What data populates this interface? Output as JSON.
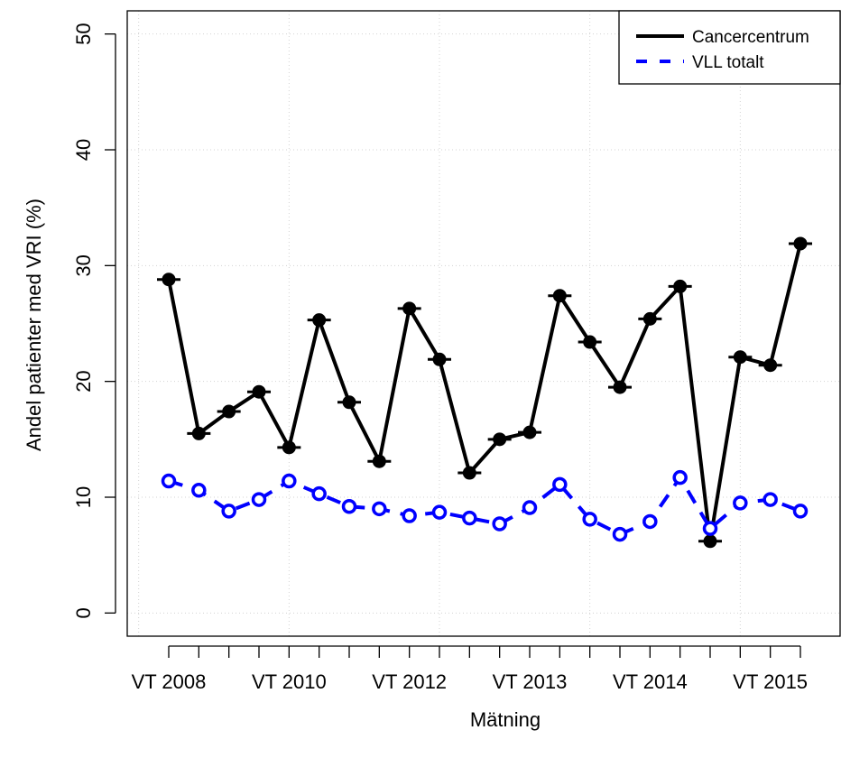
{
  "chart_data": {
    "type": "line",
    "xlabel": "Mätning",
    "ylabel": "Andel patienter med VRI (%)",
    "categories": [
      "VT 2008",
      null,
      null,
      null,
      "VT 2010",
      null,
      null,
      null,
      "VT 2012",
      null,
      null,
      null,
      "VT 2013",
      null,
      null,
      null,
      "VT 2014",
      null,
      null,
      null,
      "VT 2015",
      null
    ],
    "series": [
      {
        "name": "Cancercentrum",
        "color": "#000000",
        "dash": "solid",
        "values": [
          28.8,
          15.5,
          17.4,
          19.1,
          14.3,
          25.3,
          18.2,
          13.1,
          26.3,
          21.9,
          12.1,
          15.0,
          15.6,
          27.4,
          23.4,
          19.5,
          25.4,
          28.2,
          6.2,
          22.1,
          21.4,
          31.9
        ]
      },
      {
        "name": "VLL totalt",
        "color": "#0000ff",
        "dash": "dashed",
        "values": [
          11.4,
          10.6,
          8.8,
          9.8,
          11.4,
          10.3,
          9.2,
          9.0,
          8.4,
          8.7,
          8.2,
          7.7,
          9.1,
          11.1,
          8.1,
          6.8,
          7.9,
          11.7,
          7.3,
          9.5,
          9.8,
          8.8
        ]
      }
    ],
    "ylim": [
      -2,
      52
    ],
    "yticks": [
      0,
      10,
      20,
      30,
      40,
      50
    ],
    "xgrid": [
      0,
      5,
      10,
      15,
      20
    ],
    "xlim": [
      -0.38,
      23.32
    ],
    "grid": true,
    "legend": "top-right"
  }
}
